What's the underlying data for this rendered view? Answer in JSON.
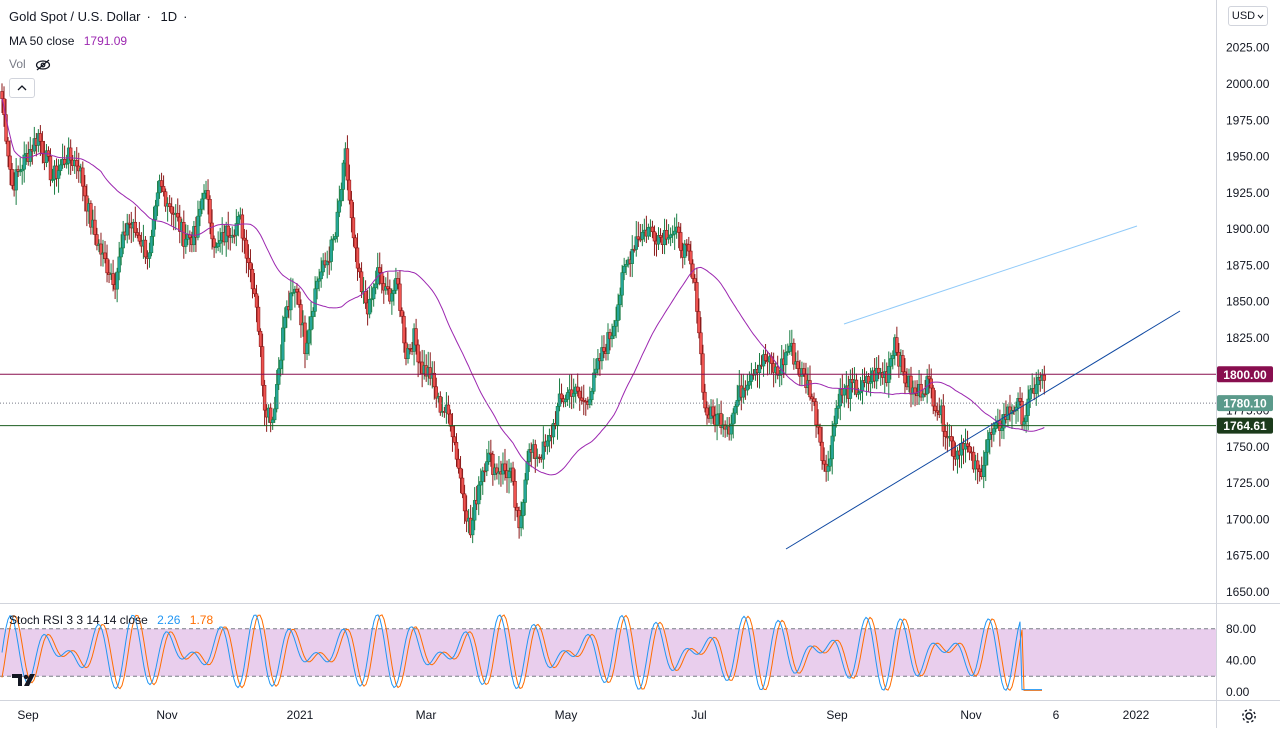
{
  "header": {
    "symbol": "Gold Spot / U.S. Dollar",
    "separator": "·",
    "interval": "1D",
    "ma_label": "MA 50 close",
    "ma_value": "1791.09",
    "vol_label": "Vol",
    "currency": "USD"
  },
  "indicator": {
    "name": "Stoch RSI 3 3 14 14 close",
    "k_value": "2.26",
    "d_value": "1.78",
    "levels": [
      80,
      20
    ],
    "axis_ticks": [
      "80.00",
      "40.00",
      "0.00"
    ]
  },
  "colors": {
    "up": "#26a69a",
    "down": "#ef5350",
    "up_body": "#1b7e45",
    "down_body": "#8b1a1a",
    "ma": "#9c27b0",
    "k_line": "#2196f3",
    "d_line": "#ff6d00",
    "band_fill": "#e1bee7",
    "resistance": "#880e4f",
    "support": "#1b5e20",
    "trend": "#0d47a1",
    "channel": "#90caf9",
    "last_price_bg": "#5b9a8b"
  },
  "chart_data": {
    "type": "candlestick",
    "title": "Gold Spot / U.S. Dollar",
    "interval": "1D",
    "ylim": [
      1640,
      2045
    ],
    "y_ticks": [
      1650,
      1675,
      1700,
      1725,
      1750,
      1775,
      1800,
      1825,
      1850,
      1875,
      1900,
      1925,
      1950,
      1975,
      2000,
      2025
    ],
    "x_ticks": [
      "Sep",
      "Nov",
      "2021",
      "Mar",
      "May",
      "Jul",
      "Sep",
      "Nov",
      "6",
      "2022"
    ],
    "horizontal_lines": [
      {
        "name": "resistance",
        "value": 1800.0,
        "label": "1800.00"
      },
      {
        "name": "support",
        "value": 1764.61,
        "label": "1764.61"
      }
    ],
    "last_price": {
      "value": 1780.1,
      "label": "1780.10"
    },
    "ma50_current": 1791.09,
    "price_path": [
      [
        0,
        1990
      ],
      [
        5,
        1930
      ],
      [
        12,
        1950
      ],
      [
        18,
        1965
      ],
      [
        25,
        1935
      ],
      [
        32,
        1950
      ],
      [
        38,
        1945
      ],
      [
        44,
        1905
      ],
      [
        50,
        1880
      ],
      [
        56,
        1865
      ],
      [
        62,
        1905
      ],
      [
        68,
        1895
      ],
      [
        73,
        1880
      ],
      [
        78,
        1930
      ],
      [
        84,
        1915
      ],
      [
        90,
        1895
      ],
      [
        96,
        1895
      ],
      [
        100,
        1930
      ],
      [
        106,
        1885
      ],
      [
        112,
        1900
      ],
      [
        118,
        1905
      ],
      [
        122,
        1880
      ],
      [
        126,
        1850
      ],
      [
        130,
        1780
      ],
      [
        134,
        1770
      ],
      [
        140,
        1840
      ],
      [
        146,
        1860
      ],
      [
        150,
        1820
      ],
      [
        156,
        1865
      ],
      [
        160,
        1875
      ],
      [
        165,
        1895
      ],
      [
        170,
        1950
      ],
      [
        174,
        1890
      ],
      [
        178,
        1855
      ],
      [
        182,
        1845
      ],
      [
        186,
        1870
      ],
      [
        190,
        1855
      ],
      [
        196,
        1860
      ],
      [
        200,
        1815
      ],
      [
        204,
        1825
      ],
      [
        208,
        1805
      ],
      [
        212,
        1800
      ],
      [
        216,
        1780
      ],
      [
        222,
        1770
      ],
      [
        228,
        1720
      ],
      [
        232,
        1690
      ],
      [
        236,
        1725
      ],
      [
        240,
        1745
      ],
      [
        244,
        1735
      ],
      [
        248,
        1735
      ],
      [
        252,
        1730
      ],
      [
        256,
        1690
      ],
      [
        260,
        1745
      ],
      [
        266,
        1745
      ],
      [
        270,
        1750
      ],
      [
        276,
        1780
      ],
      [
        282,
        1790
      ],
      [
        288,
        1780
      ],
      [
        292,
        1790
      ],
      [
        296,
        1810
      ],
      [
        302,
        1830
      ],
      [
        308,
        1870
      ],
      [
        314,
        1895
      ],
      [
        320,
        1900
      ],
      [
        326,
        1895
      ],
      [
        330,
        1900
      ],
      [
        334,
        1895
      ],
      [
        340,
        1880
      ],
      [
        344,
        1850
      ],
      [
        348,
        1775
      ],
      [
        352,
        1770
      ],
      [
        356,
        1770
      ],
      [
        360,
        1765
      ],
      [
        366,
        1790
      ],
      [
        372,
        1805
      ],
      [
        378,
        1810
      ],
      [
        384,
        1800
      ],
      [
        390,
        1820
      ],
      [
        394,
        1805
      ],
      [
        400,
        1790
      ],
      [
        404,
        1765
      ],
      [
        408,
        1730
      ],
      [
        414,
        1785
      ],
      [
        420,
        1790
      ],
      [
        426,
        1790
      ],
      [
        432,
        1800
      ],
      [
        438,
        1800
      ],
      [
        442,
        1825
      ],
      [
        446,
        1800
      ],
      [
        452,
        1785
      ],
      [
        458,
        1795
      ],
      [
        464,
        1775
      ],
      [
        468,
        1760
      ],
      [
        472,
        1745
      ],
      [
        476,
        1755
      ],
      [
        480,
        1740
      ],
      [
        484,
        1730
      ],
      [
        488,
        1755
      ],
      [
        492,
        1760
      ],
      [
        496,
        1770
      ],
      [
        502,
        1780
      ],
      [
        506,
        1770
      ],
      [
        512,
        1795
      ],
      [
        518,
        1795
      ],
      [
        524,
        1785
      ],
      [
        528,
        1785
      ],
      [
        532,
        1800
      ],
      [
        536,
        1830
      ],
      [
        540,
        1860
      ],
      [
        544,
        1865
      ],
      [
        548,
        1860
      ],
      [
        552,
        1855
      ],
      [
        556,
        1835
      ],
      [
        560,
        1800
      ],
      [
        564,
        1790
      ],
      [
        568,
        1785
      ],
      [
        572,
        1785
      ],
      [
        576,
        1778
      ]
    ],
    "stoch_rsi": {
      "k_name": "K",
      "d_name": "D",
      "k_current": 2.26,
      "d_current": 1.78
    }
  }
}
